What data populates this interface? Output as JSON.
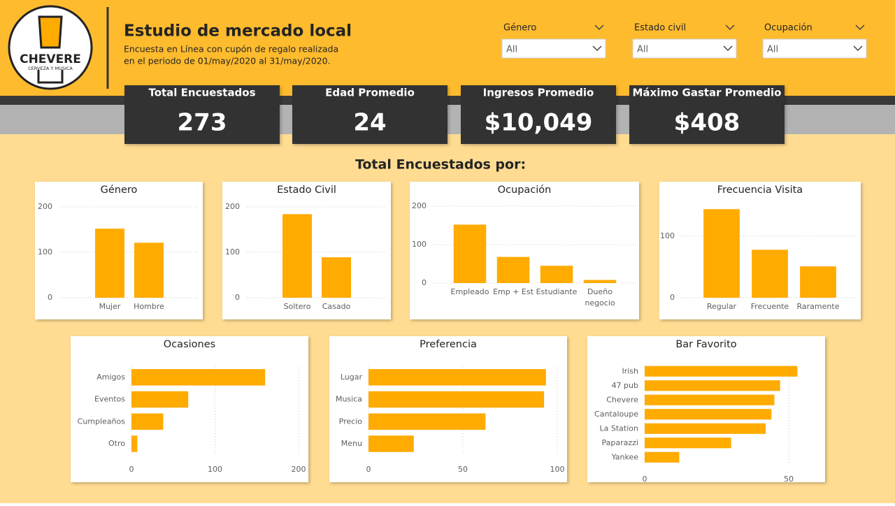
{
  "header": {
    "logo_name": "CHEVERE",
    "logo_tagline": "CERVEZA Y MUSICA",
    "title": "Estudio de mercado local",
    "subtitle_lines": [
      "Encuesta en Línea con cupón de regalo realizada",
      "en el periodo de 01/may/2020 al 31/may/2020."
    ]
  },
  "filters": [
    {
      "label": "Género",
      "value": "All"
    },
    {
      "label": "Estado civil",
      "value": "All"
    },
    {
      "label": "Ocupación",
      "value": "All"
    }
  ],
  "kpis": [
    {
      "label": "Total Encuestados",
      "value": "273"
    },
    {
      "label": "Edad Promedio",
      "value": "24"
    },
    {
      "label": "Ingresos Promedio",
      "value": "$10,049"
    },
    {
      "label": "Máximo Gastar Promedio",
      "value": "$408"
    }
  ],
  "section_title": "Total Encuestados por:",
  "chart_data": [
    {
      "type": "bar",
      "title": "Género",
      "categories": [
        "Mujer",
        "Hombre"
      ],
      "values": [
        152,
        121
      ],
      "color": "#ffab00",
      "ylim": [
        0,
        200
      ],
      "yticks": [
        0,
        100,
        200
      ],
      "grid": true
    },
    {
      "type": "bar",
      "title": "Estado Civil",
      "categories": [
        "Soltero",
        "Casado"
      ],
      "values": [
        184,
        89
      ],
      "color": "#ffab00",
      "ylim": [
        0,
        200
      ],
      "yticks": [
        0,
        100,
        200
      ],
      "grid": true
    },
    {
      "type": "bar",
      "title": "Ocupación",
      "categories": [
        "Empleado",
        "Emp + Est",
        "Estudiante",
        "Dueño negocio"
      ],
      "values": [
        152,
        68,
        45,
        8
      ],
      "color": "#ffab00",
      "ylim": [
        0,
        200
      ],
      "yticks": [
        0,
        100,
        200
      ],
      "grid": true
    },
    {
      "type": "bar",
      "title": "Frecuencia Visita",
      "categories": [
        "Regular",
        "Frecuente",
        "Raramente"
      ],
      "values": [
        144,
        78,
        51
      ],
      "color": "#ffab00",
      "ylim": [
        0,
        150
      ],
      "yticks": [
        0,
        100
      ],
      "grid": true
    },
    {
      "type": "bar",
      "orientation": "horizontal",
      "title": "Ocasiones",
      "categories": [
        "Amigos",
        "Eventos",
        "Cumpleaños",
        "Otro"
      ],
      "values": [
        160,
        68,
        38,
        7
      ],
      "color": "#ffab00",
      "xlim": [
        0,
        200
      ],
      "xticks": [
        0,
        100,
        200
      ],
      "grid": true
    },
    {
      "type": "bar",
      "orientation": "horizontal",
      "title": "Preferencia",
      "categories": [
        "Lugar",
        "Musica",
        "Precio",
        "Menu"
      ],
      "values": [
        94,
        93,
        62,
        24
      ],
      "color": "#ffab00",
      "xlim": [
        0,
        100
      ],
      "xticks": [
        0,
        50,
        100
      ],
      "grid": true
    },
    {
      "type": "bar",
      "orientation": "horizontal",
      "title": "Bar Favorito",
      "categories": [
        "Irish",
        "47 pub",
        "Chevere",
        "Cantaloupe",
        "La Station",
        "Paparazzi",
        "Yankee"
      ],
      "values": [
        53,
        47,
        45,
        44,
        42,
        30,
        12
      ],
      "color": "#ffab00",
      "xlim": [
        0,
        58
      ],
      "xticks": [
        0,
        50
      ],
      "grid": true
    }
  ]
}
